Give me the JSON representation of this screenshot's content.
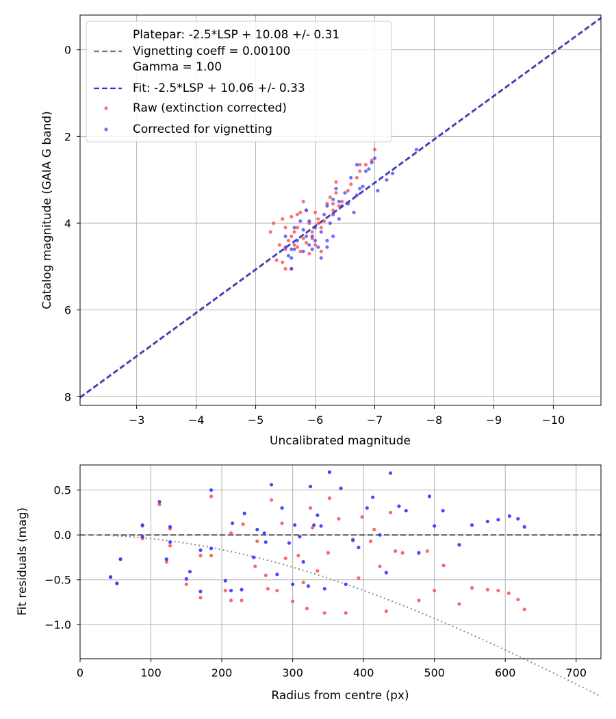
{
  "chart_data": [
    {
      "type": "scatter",
      "xlabel": "Uncalibrated magnitude",
      "ylabel": "Catalog magnitude (GAIA G band)",
      "xlim": [
        -2.05,
        -10.8
      ],
      "ylim": [
        8.2,
        -0.8
      ],
      "x_inverted": true,
      "y_inverted": true,
      "grid": true,
      "xticks": [
        -3,
        -4,
        -5,
        -6,
        -7,
        -8,
        -9,
        -10
      ],
      "xtick_labels": [
        "−3",
        "−4",
        "−5",
        "−6",
        "−7",
        "−8",
        "−9",
        "−10"
      ],
      "yticks": [
        0,
        2,
        4,
        6,
        8
      ],
      "ytick_labels": [
        "0",
        "2",
        "4",
        "6",
        "8"
      ],
      "legend_position": "upper-left",
      "legend": [
        {
          "label": "Platepar: -2.5*LSP + 10.08 +/- 0.31",
          "marker": "none"
        },
        {
          "label": "Vignetting coeff = 0.00100",
          "marker": "dashed-line",
          "color": "#777777"
        },
        {
          "label": "Gamma = 1.00",
          "marker": "none"
        },
        {
          "label": "Fit: -2.5*LSP + 10.06 +/- 0.33",
          "marker": "dashed-line",
          "color": "#3333dd"
        },
        {
          "label": "Raw (extinction corrected)",
          "marker": "dot",
          "color": "#ff3333"
        },
        {
          "label": "Corrected for vignetting",
          "marker": "dot",
          "color": "#3333ff"
        }
      ],
      "lines": [
        {
          "slope": 1,
          "intercept": 10.08,
          "color": "#777777",
          "style": "dashed"
        },
        {
          "slope": 1,
          "intercept": 10.06,
          "color": "#2222cc",
          "style": "dashed"
        }
      ],
      "series": [
        {
          "name": "Raw (extinction corrected)",
          "color": "#ff3333",
          "points": [
            [
              -5.3,
              4.0
            ],
            [
              -5.25,
              4.2
            ],
            [
              -5.4,
              4.5
            ],
            [
              -5.5,
              4.6
            ],
            [
              -5.45,
              4.9
            ],
            [
              -5.35,
              4.85
            ],
            [
              -5.5,
              5.05
            ],
            [
              -5.6,
              5.05
            ],
            [
              -5.45,
              3.9
            ],
            [
              -5.6,
              3.85
            ],
            [
              -5.7,
              3.8
            ],
            [
              -5.75,
              3.75
            ],
            [
              -5.85,
              3.7
            ],
            [
              -5.7,
              4.1
            ],
            [
              -5.55,
              4.4
            ],
            [
              -5.6,
              4.3
            ],
            [
              -5.65,
              4.5
            ],
            [
              -5.75,
              4.65
            ],
            [
              -5.8,
              4.35
            ],
            [
              -5.85,
              4.45
            ],
            [
              -5.9,
              4.0
            ],
            [
              -5.95,
              4.2
            ],
            [
              -6.0,
              4.5
            ],
            [
              -6.05,
              3.9
            ],
            [
              -6.1,
              4.1
            ],
            [
              -6.15,
              3.95
            ],
            [
              -6.2,
              3.55
            ],
            [
              -6.25,
              3.4
            ],
            [
              -6.3,
              3.7
            ],
            [
              -6.35,
              3.3
            ],
            [
              -6.4,
              3.6
            ],
            [
              -6.45,
              3.5
            ],
            [
              -6.55,
              3.25
            ],
            [
              -6.6,
              3.1
            ],
            [
              -6.7,
              2.95
            ],
            [
              -6.75,
              2.8
            ],
            [
              -6.85,
              2.65
            ],
            [
              -6.95,
              2.55
            ],
            [
              -7.0,
              2.3
            ],
            [
              -6.75,
              2.65
            ],
            [
              -6.35,
              3.05
            ],
            [
              -5.8,
              3.5
            ],
            [
              -6.0,
              3.75
            ],
            [
              -5.5,
              4.1
            ],
            [
              -5.95,
              4.35
            ],
            [
              -6.1,
              4.65
            ],
            [
              -5.65,
              4.2
            ],
            [
              -5.7,
              4.55
            ],
            [
              -6.3,
              3.55
            ],
            [
              -6.05,
              4.0
            ],
            [
              -5.9,
              4.7
            ]
          ]
        },
        {
          "name": "Corrected for vignetting",
          "color": "#3333ff",
          "points": [
            [
              -5.5,
              4.3
            ],
            [
              -5.5,
              4.55
            ],
            [
              -5.55,
              4.75
            ],
            [
              -5.6,
              4.8
            ],
            [
              -5.6,
              5.05
            ],
            [
              -5.65,
              4.6
            ],
            [
              -5.7,
              4.4
            ],
            [
              -5.75,
              3.95
            ],
            [
              -5.8,
              4.15
            ],
            [
              -5.85,
              4.3
            ],
            [
              -5.85,
              3.7
            ],
            [
              -5.9,
              4.5
            ],
            [
              -5.9,
              3.95
            ],
            [
              -5.95,
              4.3
            ],
            [
              -6.0,
              4.1
            ],
            [
              -6.05,
              4.55
            ],
            [
              -6.1,
              4.2
            ],
            [
              -6.15,
              3.8
            ],
            [
              -6.2,
              3.6
            ],
            [
              -6.25,
              4.0
            ],
            [
              -6.3,
              3.8
            ],
            [
              -6.3,
              3.45
            ],
            [
              -6.35,
              3.2
            ],
            [
              -6.4,
              3.9
            ],
            [
              -6.45,
              3.6
            ],
            [
              -6.5,
              3.3
            ],
            [
              -6.55,
              3.55
            ],
            [
              -6.6,
              2.95
            ],
            [
              -6.65,
              3.75
            ],
            [
              -6.7,
              3.35
            ],
            [
              -6.75,
              3.2
            ],
            [
              -6.8,
              3.15
            ],
            [
              -6.85,
              2.8
            ],
            [
              -6.9,
              2.75
            ],
            [
              -6.95,
              2.6
            ],
            [
              -7.0,
              2.5
            ],
            [
              -7.05,
              3.25
            ],
            [
              -7.2,
              3.0
            ],
            [
              -7.3,
              2.85
            ],
            [
              -7.7,
              2.3
            ],
            [
              -6.7,
              2.65
            ],
            [
              -6.2,
              4.55
            ],
            [
              -6.3,
              4.3
            ],
            [
              -5.8,
              4.65
            ],
            [
              -5.6,
              4.6
            ],
            [
              -6.0,
              4.4
            ],
            [
              -6.1,
              4.8
            ],
            [
              -5.95,
              4.6
            ],
            [
              -6.4,
              3.5
            ],
            [
              -6.2,
              4.4
            ],
            [
              -5.65,
              4.1
            ]
          ]
        }
      ]
    },
    {
      "type": "scatter",
      "xlabel": "Radius from centre (px)",
      "ylabel": "Fit residuals (mag)",
      "xlim": [
        0,
        735
      ],
      "ylim": [
        -1.38,
        0.78
      ],
      "grid": true,
      "xticks": [
        0,
        100,
        200,
        300,
        400,
        500,
        600,
        700
      ],
      "xtick_labels": [
        "0",
        "100",
        "200",
        "300",
        "400",
        "500",
        "600",
        "700"
      ],
      "yticks": [
        0.5,
        0.0,
        -0.5,
        -1.0
      ],
      "ytick_labels": [
        "0.5",
        "0.0",
        "−0.5",
        "−1.0"
      ],
      "lines": [
        {
          "y": 0,
          "color": "#555555",
          "style": "dashed"
        },
        {
          "curve": "vignetting",
          "coeff": 0.001,
          "color": "#888888",
          "style": "dotted"
        }
      ],
      "series": [
        {
          "name": "Raw (extinction corrected)",
          "color": "#ff3333",
          "points": [
            [
              43,
              -0.47
            ],
            [
              52,
              -0.54
            ],
            [
              57,
              -0.27
            ],
            [
              88,
              -0.04
            ],
            [
              88,
              0.1
            ],
            [
              112,
              0.34
            ],
            [
              122,
              -0.3
            ],
            [
              127,
              -0.12
            ],
            [
              127,
              0.07
            ],
            [
              150,
              -0.55
            ],
            [
              170,
              -0.7
            ],
            [
              170,
              -0.23
            ],
            [
              185,
              0.43
            ],
            [
              185,
              -0.23
            ],
            [
              205,
              -0.62
            ],
            [
              213,
              -0.73
            ],
            [
              213,
              0.02
            ],
            [
              228,
              -0.73
            ],
            [
              230,
              0.12
            ],
            [
              247,
              -0.35
            ],
            [
              250,
              -0.07
            ],
            [
              265,
              -0.6
            ],
            [
              270,
              0.39
            ],
            [
              278,
              -0.62
            ],
            [
              285,
              0.13
            ],
            [
              290,
              -0.26
            ],
            [
              300,
              -0.74
            ],
            [
              308,
              -0.23
            ],
            [
              315,
              -0.53
            ],
            [
              320,
              -0.82
            ],
            [
              325,
              0.3
            ],
            [
              328,
              0.08
            ],
            [
              345,
              -0.87
            ],
            [
              352,
              0.41
            ],
            [
              365,
              0.18
            ],
            [
              375,
              -0.87
            ],
            [
              385,
              -0.05
            ],
            [
              393,
              -0.48
            ],
            [
              410,
              -0.07
            ],
            [
              415,
              0.06
            ],
            [
              423,
              -0.35
            ],
            [
              432,
              -0.85
            ],
            [
              438,
              0.25
            ],
            [
              455,
              -0.2
            ],
            [
              478,
              -0.73
            ],
            [
              490,
              -0.18
            ],
            [
              500,
              -0.62
            ],
            [
              513,
              -0.34
            ],
            [
              535,
              -0.77
            ],
            [
              553,
              -0.59
            ],
            [
              575,
              -0.61
            ],
            [
              590,
              -0.62
            ],
            [
              605,
              -0.65
            ],
            [
              618,
              -0.72
            ],
            [
              627,
              -0.83
            ],
            [
              262,
              -0.45
            ],
            [
              335,
              -0.4
            ],
            [
              350,
              -0.2
            ],
            [
              445,
              -0.18
            ],
            [
              398,
              0.2
            ]
          ]
        },
        {
          "name": "Corrected for vignetting",
          "color": "#3333ff",
          "points": [
            [
              43,
              -0.47
            ],
            [
              52,
              -0.54
            ],
            [
              57,
              -0.27
            ],
            [
              88,
              -0.02
            ],
            [
              88,
              0.11
            ],
            [
              112,
              0.37
            ],
            [
              122,
              -0.27
            ],
            [
              127,
              -0.08
            ],
            [
              127,
              0.09
            ],
            [
              150,
              -0.49
            ],
            [
              155,
              -0.41
            ],
            [
              170,
              -0.63
            ],
            [
              170,
              -0.17
            ],
            [
              185,
              0.5
            ],
            [
              185,
              -0.15
            ],
            [
              205,
              -0.51
            ],
            [
              213,
              -0.62
            ],
            [
              215,
              0.13
            ],
            [
              228,
              -0.61
            ],
            [
              232,
              0.24
            ],
            [
              245,
              -0.25
            ],
            [
              250,
              0.06
            ],
            [
              262,
              -0.08
            ],
            [
              270,
              0.56
            ],
            [
              278,
              -0.44
            ],
            [
              285,
              0.3
            ],
            [
              295,
              -0.09
            ],
            [
              300,
              -0.55
            ],
            [
              303,
              0.11
            ],
            [
              310,
              -0.02
            ],
            [
              315,
              -0.3
            ],
            [
              322,
              -0.57
            ],
            [
              325,
              0.54
            ],
            [
              330,
              0.11
            ],
            [
              335,
              0.22
            ],
            [
              345,
              -0.6
            ],
            [
              352,
              0.7
            ],
            [
              368,
              0.52
            ],
            [
              375,
              -0.55
            ],
            [
              385,
              -0.06
            ],
            [
              393,
              -0.14
            ],
            [
              405,
              0.3
            ],
            [
              413,
              0.42
            ],
            [
              423,
              0.0
            ],
            [
              432,
              -0.42
            ],
            [
              438,
              0.69
            ],
            [
              450,
              0.32
            ],
            [
              460,
              0.27
            ],
            [
              478,
              -0.2
            ],
            [
              493,
              0.43
            ],
            [
              500,
              0.1
            ],
            [
              512,
              0.27
            ],
            [
              535,
              -0.11
            ],
            [
              553,
              0.11
            ],
            [
              575,
              0.15
            ],
            [
              590,
              0.17
            ],
            [
              606,
              0.21
            ],
            [
              618,
              0.18
            ],
            [
              627,
              0.09
            ],
            [
              260,
              0.02
            ],
            [
              340,
              0.1
            ]
          ]
        }
      ]
    }
  ]
}
